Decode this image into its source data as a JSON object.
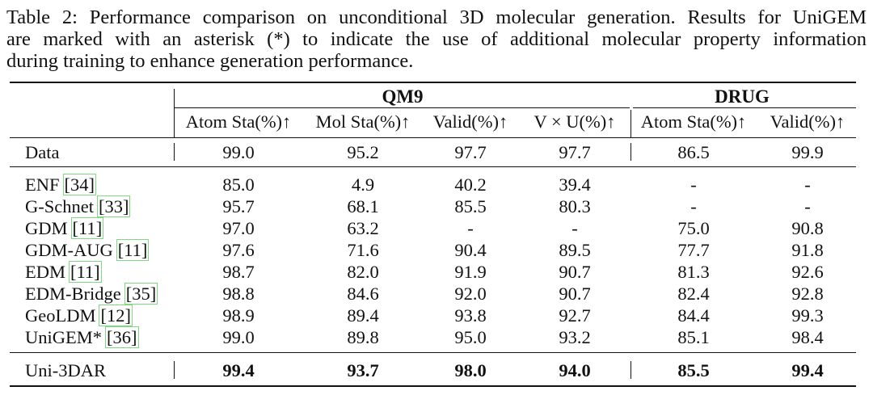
{
  "caption": {
    "lines": [
      "Table 2: Performance comparison on unconditional 3D molecular generation. Results for UniGEM",
      "are marked with an asterisk (*) to indicate the use of additional molecular property information",
      "during training to enhance generation performance."
    ]
  },
  "table": {
    "groups": [
      {
        "label": "QM9"
      },
      {
        "label": "DRUG"
      }
    ],
    "columns": [
      "Atom Sta(%)↑",
      "Mol Sta(%)↑",
      "Valid(%)↑",
      "V × U(%)↑",
      "Atom Sta(%)↑",
      "Valid(%)↑"
    ],
    "data_row": {
      "name": "Data",
      "values": [
        "99.0",
        "95.2",
        "97.7",
        "97.7",
        "86.5",
        "99.9"
      ]
    },
    "baselines": [
      {
        "name": "ENF",
        "ref": "34",
        "values": [
          "85.0",
          "4.9",
          "40.2",
          "39.4",
          "-",
          "-"
        ]
      },
      {
        "name": "G-Schnet",
        "ref": "33",
        "values": [
          "95.7",
          "68.1",
          "85.5",
          "80.3",
          "-",
          "-"
        ]
      },
      {
        "name": "GDM",
        "ref": "11",
        "values": [
          "97.0",
          "63.2",
          "-",
          "-",
          "75.0",
          "90.8"
        ]
      },
      {
        "name": "GDM-AUG",
        "ref": "11",
        "values": [
          "97.6",
          "71.6",
          "90.4",
          "89.5",
          "77.7",
          "91.8"
        ]
      },
      {
        "name": "EDM",
        "ref": "11",
        "values": [
          "98.7",
          "82.0",
          "91.9",
          "90.7",
          "81.3",
          "92.6"
        ]
      },
      {
        "name": "EDM-Bridge",
        "ref": "35",
        "values": [
          "98.8",
          "84.6",
          "92.0",
          "90.7",
          "82.4",
          "92.8"
        ]
      },
      {
        "name": "GeoLDM",
        "ref": "12",
        "values": [
          "98.9",
          "89.4",
          "93.8",
          "92.7",
          "84.4",
          "99.3"
        ]
      },
      {
        "name": "UniGEM*",
        "ref": "36",
        "values": [
          "99.0",
          "89.8",
          "95.0",
          "93.2",
          "85.1",
          "98.4"
        ]
      }
    ],
    "ours": {
      "name": "Uni-3DAR",
      "values": [
        "99.4",
        "93.7",
        "98.0",
        "94.0",
        "85.5",
        "99.4"
      ]
    }
  }
}
